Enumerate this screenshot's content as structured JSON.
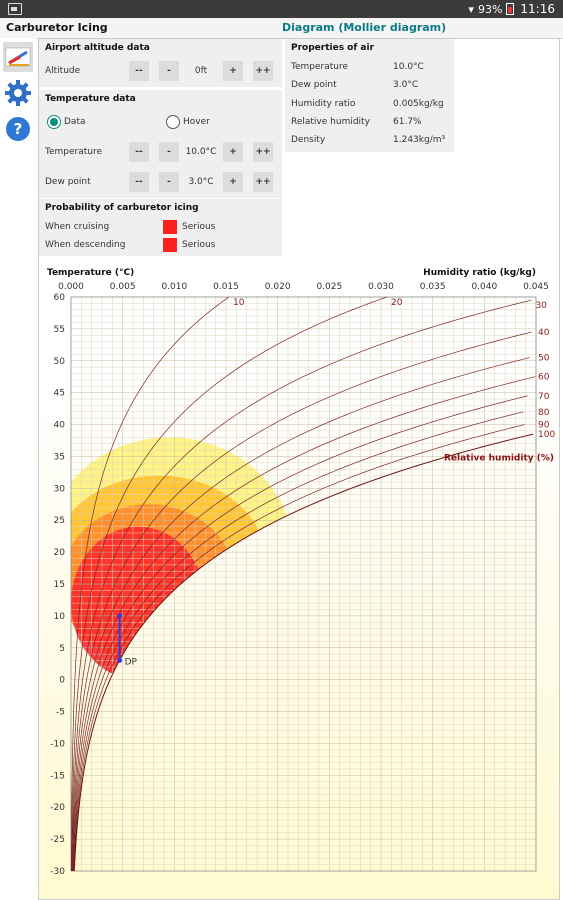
{
  "status_bar": {
    "battery": "93%",
    "time": "11:16"
  },
  "app": {
    "title": "Carburetor Icing",
    "diagram_title": "Diagram (Mollier diagram)"
  },
  "sidebar": {
    "items": [
      {
        "icon": "slide-rule-icon",
        "active": true
      },
      {
        "icon": "gear-icon",
        "active": false
      },
      {
        "icon": "help-icon",
        "active": false
      }
    ]
  },
  "airport": {
    "title": "Airport altitude data",
    "altitude_label": "Altitude",
    "altitude_value": "0ft",
    "btn_dec2": "--",
    "btn_dec": "-",
    "btn_inc": "+",
    "btn_inc2": "++"
  },
  "temperature_data": {
    "title": "Temperature data",
    "mode_data": "Data",
    "mode_hover": "Hover",
    "selected_mode": "Data",
    "temperature_label": "Temperature",
    "temperature_value": "10.0°C",
    "dewpoint_label": "Dew point",
    "dewpoint_value": "3.0°C",
    "btn_dec2": "--",
    "btn_dec": "-",
    "btn_inc": "+",
    "btn_inc2": "++"
  },
  "probability": {
    "title": "Probability of carburetor icing",
    "cruising_label": "When cruising",
    "cruising_value": "Serious",
    "cruising_color": "#ff2020",
    "descending_label": "When descending",
    "descending_value": "Serious",
    "descending_color": "#ff2020"
  },
  "properties": {
    "title": "Properties of air",
    "rows": [
      {
        "label": "Temperature",
        "value": "10.0°C"
      },
      {
        "label": "Dew point",
        "value": "3.0°C"
      },
      {
        "label": "Humidity ratio",
        "value": "0.005kg/kg"
      },
      {
        "label": "Relative humidity",
        "value": "61.7%"
      },
      {
        "label": "Density",
        "value": "1.243kg/m³"
      }
    ]
  },
  "chart_data": {
    "type": "scatter",
    "ylabel": "Temperature (°C)",
    "xlabel": "Humidity ratio (kg/kg)",
    "rh_label": "Relative humidity (%)",
    "xlim": [
      0,
      0.045
    ],
    "ylim": [
      -30,
      60
    ],
    "x_ticks": [
      "0.000",
      "0.005",
      "0.010",
      "0.015",
      "0.020",
      "0.025",
      "0.030",
      "0.035",
      "0.040",
      "0.045"
    ],
    "y_ticks": [
      "60",
      "55",
      "50",
      "45",
      "40",
      "35",
      "30",
      "25",
      "20",
      "15",
      "10",
      "5",
      "0",
      "-5",
      "-10",
      "-15",
      "-20",
      "-25",
      "-30"
    ],
    "rh_curves": [
      10,
      20,
      30,
      40,
      50,
      60,
      70,
      80,
      90,
      100
    ],
    "point": {
      "label": "DP",
      "humidity_ratio": 0.0047,
      "dew_point": 3.0,
      "temperature": 10.0
    },
    "zones_colors": [
      "#fdf27a",
      "#ffc12e",
      "#ff8a2a",
      "#ff2a2a"
    ]
  }
}
